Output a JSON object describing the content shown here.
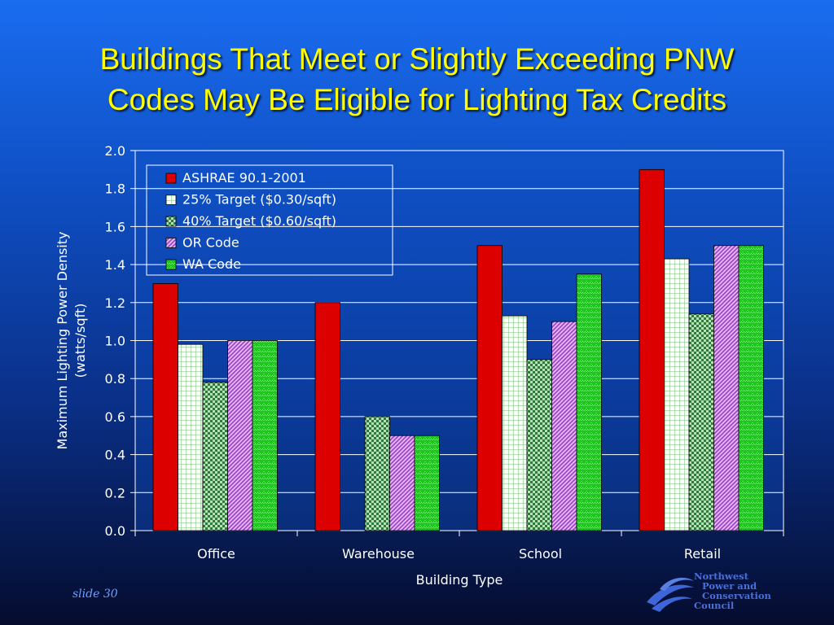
{
  "title_lines": [
    "Buildings That Meet or Slightly Exceeding PNW",
    "Codes May Be Eligible for Lighting Tax Credits"
  ],
  "slide_label": "slide 30",
  "logo": {
    "lines": [
      "Northwest",
      "Power and",
      "Conservation",
      "Council"
    ],
    "icon": "swoosh-logo-icon"
  },
  "colors": {
    "background_top": "#1a6df0",
    "background_bottom": "#050c2e",
    "title": "#ffff00",
    "plot_bg": "#0f4fc4",
    "grid": "#ffffff"
  },
  "chart_data": {
    "type": "bar",
    "xlabel": "Building Type",
    "ylabel_lines": [
      "Maximum Lighting Power Density",
      "(watts/sqft)"
    ],
    "ylim": [
      0,
      2.0
    ],
    "yticks": [
      "0.0",
      "0.2",
      "0.4",
      "0.6",
      "0.8",
      "1.0",
      "1.2",
      "1.4",
      "1.6",
      "1.8",
      "2.0"
    ],
    "grid": true,
    "legend_position": "top-left",
    "categories": [
      "Office",
      "Warehouse",
      "School",
      "Retail"
    ],
    "series": [
      {
        "name": "ASHRAE 90.1-2001",
        "values": [
          1.3,
          1.2,
          1.5,
          1.9
        ],
        "color": "#dd0000",
        "pattern": "solid"
      },
      {
        "name": "25% Target ($0.30/sqft)",
        "values": [
          0.98,
          0,
          1.13,
          1.43
        ],
        "color": "#ffffff",
        "pattern": "grid"
      },
      {
        "name": "40% Target ($0.60/sqft)",
        "values": [
          0.78,
          0.6,
          0.9,
          1.14
        ],
        "color": "#3a8f4a",
        "pattern": "checker"
      },
      {
        "name": "OR Code",
        "values": [
          1.0,
          0.5,
          1.1,
          1.5
        ],
        "color": "#b060d8",
        "pattern": "diagonal"
      },
      {
        "name": "WA Code",
        "values": [
          1.0,
          0.5,
          1.35,
          1.5
        ],
        "color": "#22dd22",
        "pattern": "zigzag"
      }
    ]
  }
}
